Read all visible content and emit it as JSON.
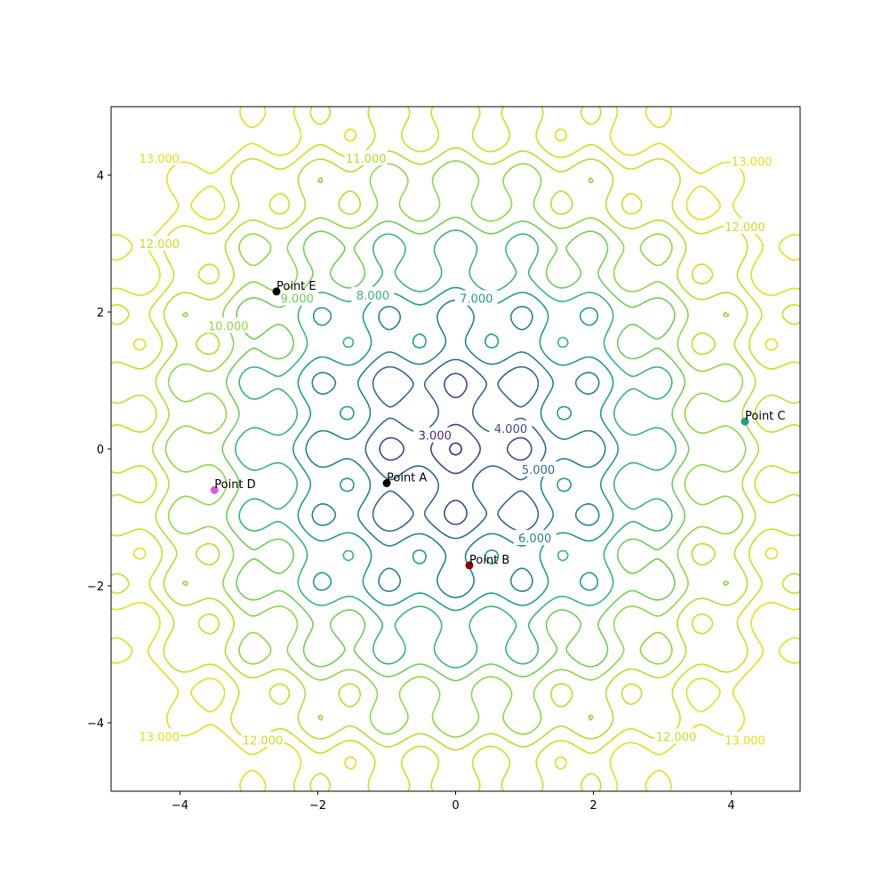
{
  "chart_data": {
    "type": "contour",
    "title": "",
    "xlabel": "",
    "ylabel": "",
    "xlim": [
      -5,
      5
    ],
    "ylim": [
      -5,
      5
    ],
    "xticks": [
      -4,
      -2,
      0,
      2,
      4
    ],
    "yticks": [
      -4,
      -2,
      0,
      2,
      4
    ],
    "grid": false,
    "levels": [
      3,
      4,
      5,
      6,
      7,
      8,
      9,
      10,
      11,
      12,
      13
    ],
    "level_colors": [
      "#482878",
      "#3e4989",
      "#31688e",
      "#26828e",
      "#1f9e89",
      "#35b779",
      "#6ece58",
      "#8fd744",
      "#b5de2b",
      "#c8e020",
      "#dde318"
    ],
    "contour_labels": [
      {
        "text": "3.000",
        "x": -0.3,
        "y": 0.2,
        "level": 3
      },
      {
        "text": "4.000",
        "x": 0.8,
        "y": 0.3,
        "level": 4
      },
      {
        "text": "5.000",
        "x": 1.2,
        "y": -0.3,
        "level": 5
      },
      {
        "text": "6.000",
        "x": 1.15,
        "y": -1.3,
        "level": 6
      },
      {
        "text": "7.000",
        "x": 0.3,
        "y": 2.2,
        "level": 7
      },
      {
        "text": "8.000",
        "x": -1.2,
        "y": 2.25,
        "level": 8
      },
      {
        "text": "9.000",
        "x": -2.3,
        "y": 2.2,
        "level": 9
      },
      {
        "text": "10.000",
        "x": -3.3,
        "y": 1.8,
        "level": 10
      },
      {
        "text": "11.000",
        "x": -1.3,
        "y": 4.25,
        "level": 11
      },
      {
        "text": "12.000",
        "x": -4.3,
        "y": 3.0,
        "level": 12
      },
      {
        "text": "12.000",
        "x": 4.2,
        "y": 3.25,
        "level": 12
      },
      {
        "text": "12.000",
        "x": -2.8,
        "y": -4.25,
        "level": 12
      },
      {
        "text": "12.000",
        "x": 3.2,
        "y": -4.2,
        "level": 12
      },
      {
        "text": "13.000",
        "x": -4.3,
        "y": 4.25,
        "level": 13
      },
      {
        "text": "13.000",
        "x": 4.3,
        "y": 4.2,
        "level": 13
      },
      {
        "text": "13.000",
        "x": -4.3,
        "y": -4.2,
        "level": 13
      },
      {
        "text": "13.000",
        "x": 4.2,
        "y": -4.25,
        "level": 13
      }
    ],
    "points": [
      {
        "name": "Point A",
        "x": -1.0,
        "y": -0.5,
        "color": "#000000"
      },
      {
        "name": "Point B",
        "x": 0.2,
        "y": -1.7,
        "color": "#8b0000"
      },
      {
        "name": "Point C",
        "x": 4.2,
        "y": 0.4,
        "color": "#20a08a"
      },
      {
        "name": "Point D",
        "x": -3.5,
        "y": -0.6,
        "color": "#d65ce6"
      },
      {
        "name": "Point E",
        "x": -2.6,
        "y": 2.3,
        "color": "#000000"
      }
    ]
  }
}
